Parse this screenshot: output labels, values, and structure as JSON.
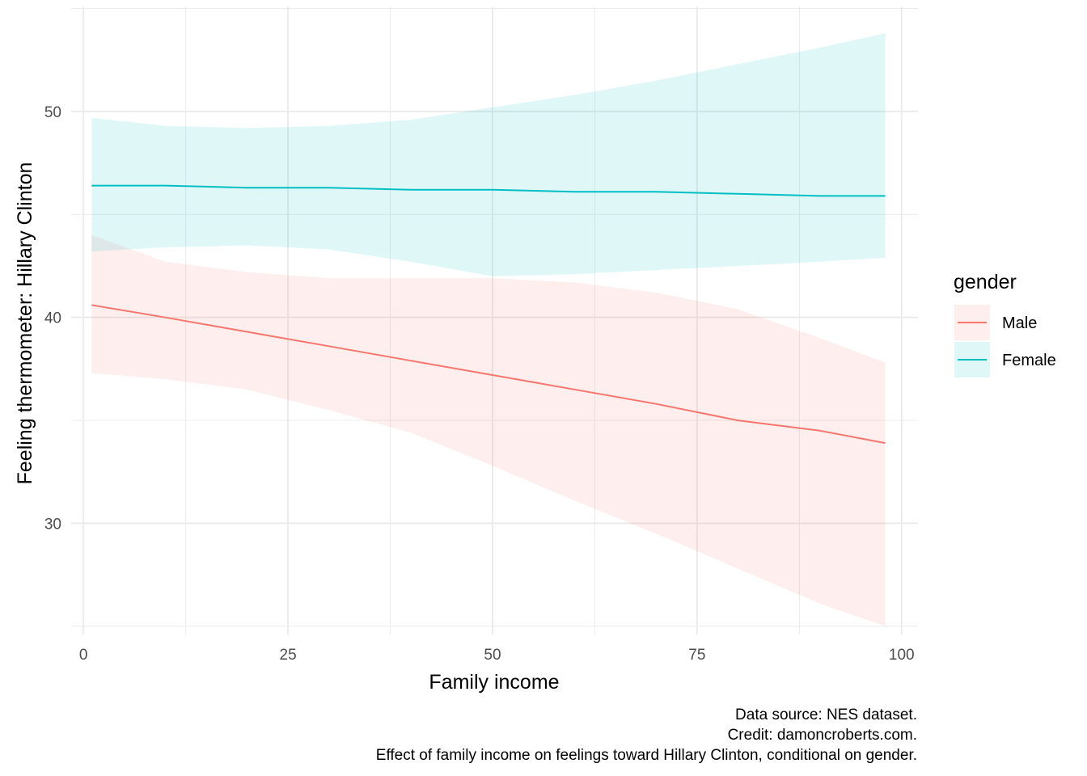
{
  "chart_data": {
    "type": "line",
    "title": "",
    "xlabel": "Family income",
    "ylabel": "Feeling thermometer: Hillary Clinton",
    "xlim": [
      -1.5,
      102
    ],
    "ylim": [
      24.6,
      55.1
    ],
    "x_major_ticks": [
      0,
      25,
      50,
      75,
      100
    ],
    "x_minor_ticks": [
      12.5,
      37.5,
      62.5,
      87.5
    ],
    "y_major_ticks": [
      30,
      40,
      50
    ],
    "y_minor_ticks": [
      25,
      35,
      45,
      55
    ],
    "x_tick_labels": [
      "0",
      "25",
      "50",
      "75",
      "100"
    ],
    "y_tick_labels": [
      "30",
      "40",
      "50"
    ],
    "grid": true,
    "legend": {
      "title": "gender",
      "position": "right",
      "entries": [
        "Male",
        "Female"
      ]
    },
    "series": [
      {
        "name": "Male",
        "color": "#F8766D",
        "ribbon_color": "#F8766D",
        "x": [
          1,
          10,
          20,
          30,
          40,
          50,
          60,
          70,
          80,
          90,
          98
        ],
        "y": [
          40.6,
          40.0,
          39.3,
          38.6,
          37.9,
          37.2,
          36.5,
          35.8,
          35.0,
          34.5,
          33.9
        ],
        "lower": [
          37.3,
          37.0,
          36.5,
          35.5,
          34.4,
          32.8,
          31.1,
          29.5,
          27.8,
          26.1,
          25.0
        ],
        "upper": [
          44.0,
          42.7,
          42.2,
          41.9,
          41.9,
          41.9,
          41.7,
          41.2,
          40.4,
          39.0,
          37.8
        ]
      },
      {
        "name": "Female",
        "color": "#00BFC4",
        "ribbon_color": "#00BFC4",
        "x": [
          1,
          10,
          20,
          30,
          40,
          50,
          60,
          70,
          80,
          90,
          98
        ],
        "y": [
          46.4,
          46.4,
          46.3,
          46.3,
          46.2,
          46.2,
          46.1,
          46.1,
          46.0,
          45.9,
          45.9
        ],
        "lower": [
          43.2,
          43.4,
          43.5,
          43.3,
          42.7,
          42.0,
          42.1,
          42.3,
          42.5,
          42.7,
          42.9
        ],
        "upper": [
          49.7,
          49.3,
          49.2,
          49.3,
          49.6,
          50.2,
          50.8,
          51.5,
          52.3,
          53.1,
          53.8
        ]
      }
    ],
    "caption": [
      "Data source: NES dataset.",
      "Credit: damoncroberts.com.",
      "Effect of family income on feelings toward Hillary Clinton, conditional on gender."
    ]
  },
  "colors": {
    "background": "#ffffff",
    "grid": "#ebebeb",
    "male": "#F8766D",
    "female": "#00BFC4"
  }
}
